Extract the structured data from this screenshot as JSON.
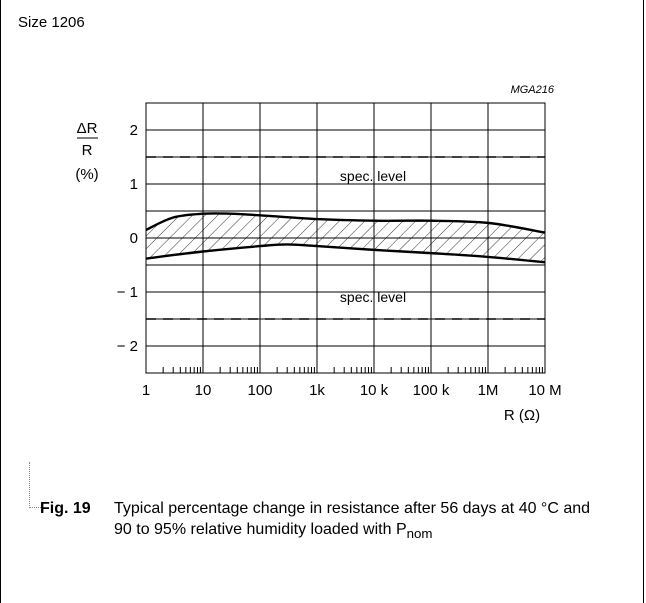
{
  "page": {
    "size_label": "Size 1206",
    "code": "MGA216"
  },
  "chart_data": {
    "type": "area",
    "title": "",
    "ylabel_top": "ΔR",
    "ylabel_bottom": "R",
    "ylabel_unit": "(%)",
    "xlabel": "R (Ω)",
    "xscale": "log",
    "xlim": [
      1,
      10000000
    ],
    "ylim": [
      -2.5,
      2.5
    ],
    "grid": true,
    "x_ticks": [
      1,
      10,
      100,
      1000,
      10000,
      100000,
      1000000,
      10000000
    ],
    "x_tick_labels": [
      "1",
      "10",
      "100",
      "1k",
      "10 k",
      "100 k",
      "1M",
      "10 M"
    ],
    "y_ticks": [
      2,
      1,
      0,
      -1,
      -2
    ],
    "y_tick_labels": [
      "2",
      "1",
      "0",
      "− 1",
      "− 2"
    ],
    "spec_levels": [
      1.5,
      -1.5
    ],
    "spec_label": "spec. level",
    "series": [
      {
        "x": [
          1,
          3,
          10,
          30,
          100,
          1000,
          10000,
          100000,
          1000000,
          10000000
        ],
        "values": [
          0.15,
          0.38,
          0.45,
          0.45,
          0.42,
          0.35,
          0.32,
          0.32,
          0.28,
          0.1
        ]
      },
      {
        "x": [
          1,
          10,
          100,
          300,
          1000,
          10000,
          100000,
          1000000,
          10000000
        ],
        "values": [
          -0.38,
          -0.25,
          -0.15,
          -0.12,
          -0.15,
          -0.22,
          -0.28,
          -0.35,
          -0.45
        ]
      }
    ]
  },
  "caption": {
    "fig_label": "Fig. 19",
    "text": "Typical percentage change in resistance after 56 days at 40 °C and 90 to 95% relative humidity loaded with P",
    "subscript": "nom"
  }
}
